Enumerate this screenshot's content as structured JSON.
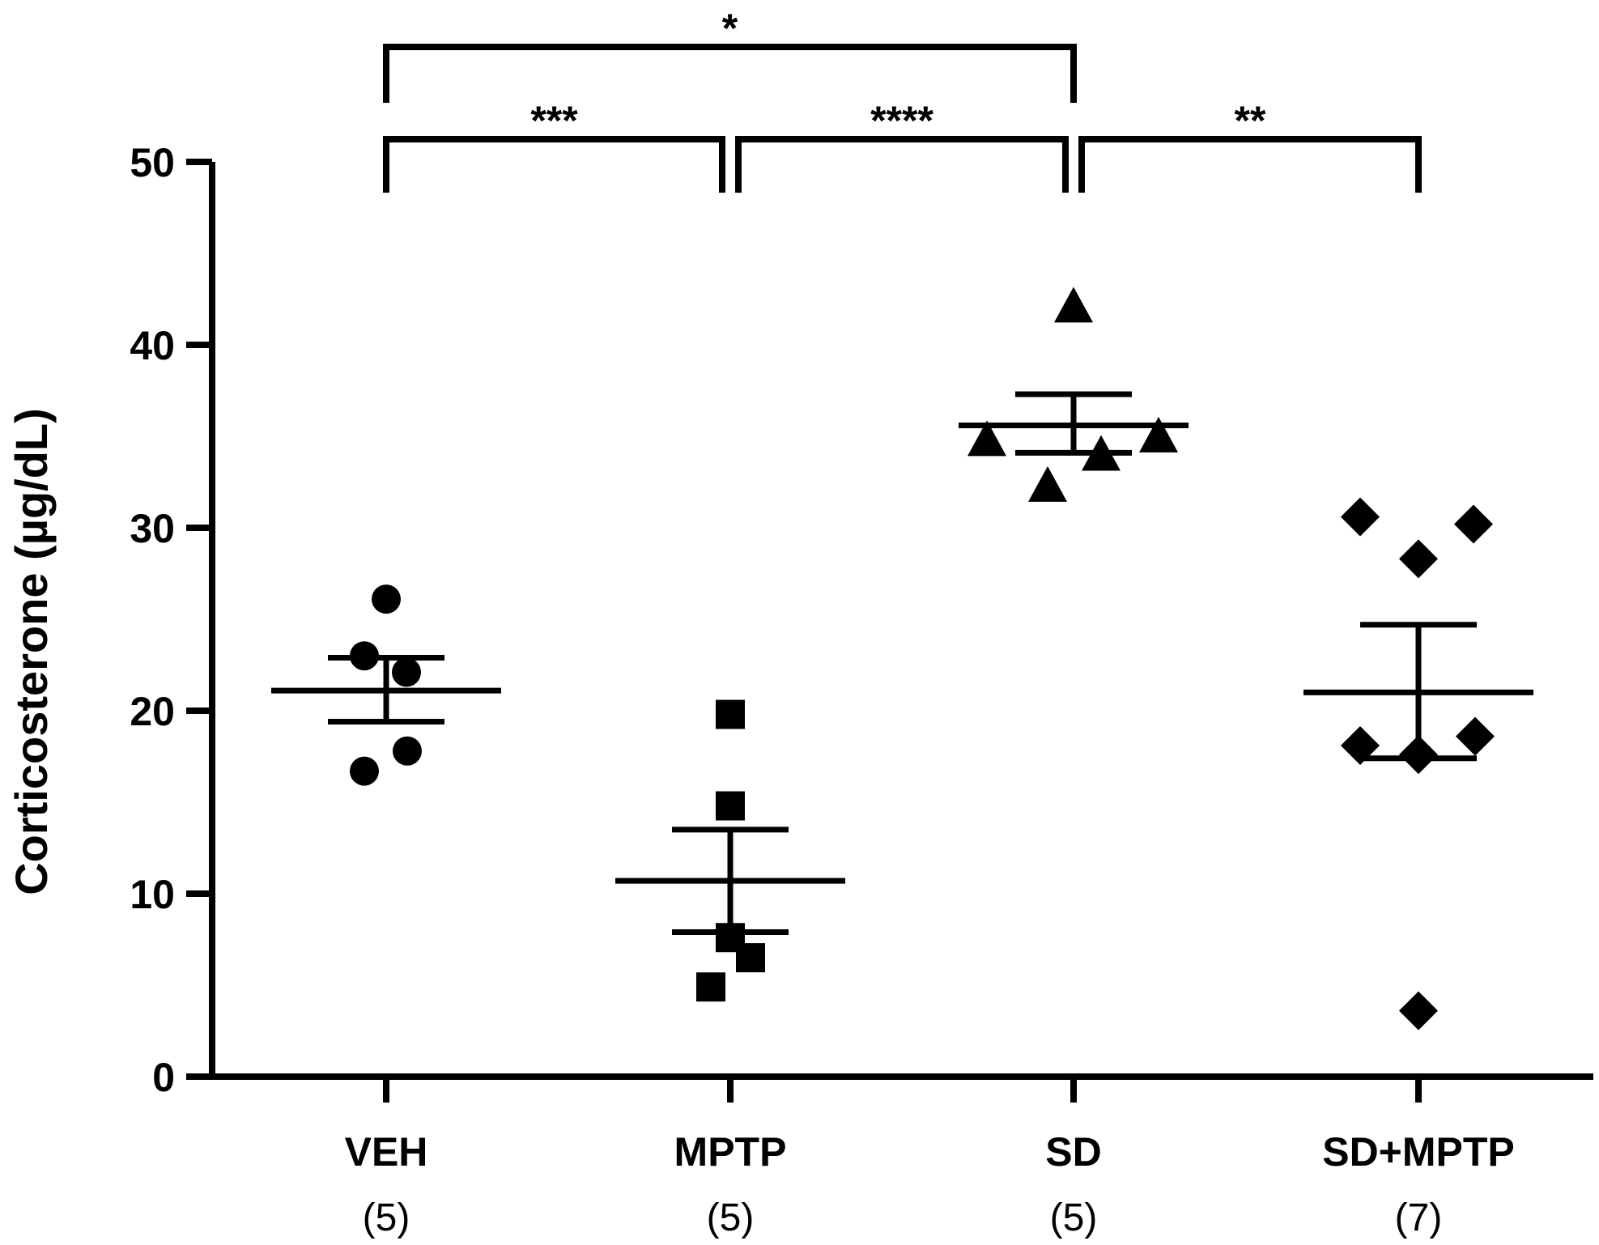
{
  "chart_data": {
    "type": "scatter",
    "ylabel": "Corticosterone (µg/dL)",
    "xlabel": "",
    "ylim": [
      0,
      50
    ],
    "yticks": [
      0,
      10,
      20,
      30,
      40,
      50
    ],
    "ytick_labels": [
      "0",
      "10",
      "20",
      "30",
      "40",
      "50"
    ],
    "colors": {
      "ink": "#000000",
      "background": "#ffffff"
    },
    "groups": [
      {
        "name": "VEH",
        "n_label": "(5)",
        "marker": "circle",
        "values": [
          26.1,
          23.0,
          22.1,
          17.8,
          16.7
        ],
        "mean": 21.1,
        "sem_upper": 22.9,
        "sem_lower": 19.4
      },
      {
        "name": "MPTP",
        "n_label": "(5)",
        "marker": "square",
        "values": [
          19.8,
          14.8,
          7.6,
          6.5,
          4.9
        ],
        "mean": 10.7,
        "sem_upper": 13.5,
        "sem_lower": 7.9
      },
      {
        "name": "SD",
        "n_label": "(5)",
        "marker": "triangle",
        "values": [
          42.0,
          34.7,
          32.2,
          33.9,
          34.9
        ],
        "mean": 35.6,
        "sem_upper": 37.3,
        "sem_lower": 34.1
      },
      {
        "name": "SD+MPTP",
        "n_label": "(7)",
        "marker": "diamond",
        "values": [
          30.6,
          28.3,
          30.2,
          18.1,
          17.6,
          18.6,
          3.6
        ],
        "mean": 21.0,
        "sem_upper": 24.7,
        "sem_lower": 17.4
      }
    ],
    "significance": [
      {
        "from": 0,
        "to": 1,
        "label": "***",
        "level": 1
      },
      {
        "from": 1,
        "to": 2,
        "label": "****",
        "level": 1
      },
      {
        "from": 2,
        "to": 3,
        "label": "**",
        "level": 1
      },
      {
        "from": 0,
        "to": 2,
        "label": "*",
        "level": 2
      }
    ]
  }
}
